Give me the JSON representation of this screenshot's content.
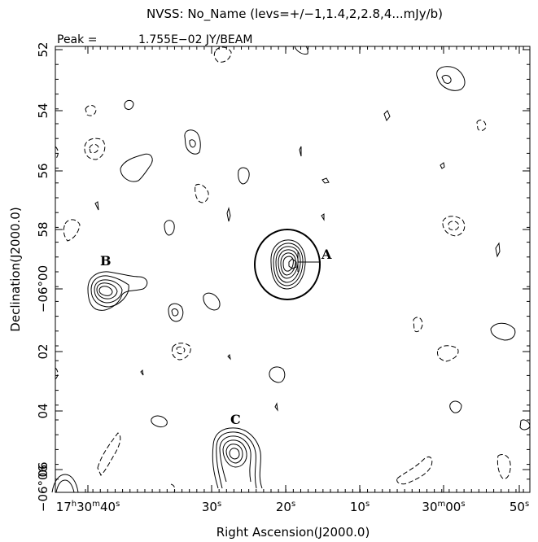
{
  "header": {
    "title": "NVSS: No_Name (levs=+/−1,1.4,2,2.8,4...mJy/b)",
    "peak_label": "Peak =",
    "peak_value": "1.755E−02 JY/BEAM"
  },
  "axes": {
    "xlabel": "Right Ascension(J2000.0)",
    "ylabel": "Declination(J2000.0)",
    "x_ticks": [
      {
        "h": "17",
        "m": "30",
        "s": "40",
        "mode": "hms"
      },
      {
        "s": "30",
        "mode": "s"
      },
      {
        "s": "20",
        "mode": "s"
      },
      {
        "s": "10",
        "mode": "s"
      },
      {
        "m": "30",
        "s": "00",
        "mode": "ms"
      },
      {
        "s": "50",
        "mode": "s"
      }
    ],
    "y_ticks": [
      "52",
      "54",
      "56",
      "58",
      "−06°00",
      "02",
      "04",
      "06",
      "−06°06"
    ]
  },
  "sources": [
    {
      "id": "A",
      "label": "A"
    },
    {
      "id": "B",
      "label": "B"
    },
    {
      "id": "C",
      "label": "C"
    }
  ],
  "colors": {
    "ink": "#000000",
    "background": "#ffffff"
  }
}
